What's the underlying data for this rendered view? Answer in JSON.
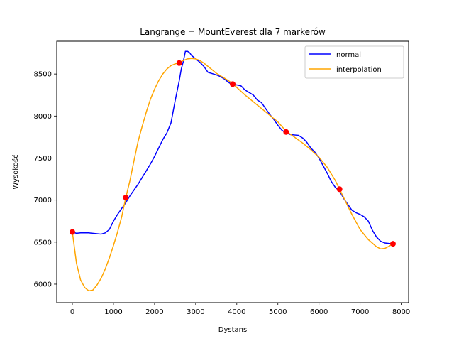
{
  "chart_data": {
    "type": "line",
    "title": "Langrange = MountEverest dla 7 markerów",
    "xlabel": "Dystans",
    "ylabel": "Wysokość",
    "xlim": [
      -380,
      8180
    ],
    "ylim": [
      5780,
      8890
    ],
    "xticks": [
      0,
      1000,
      2000,
      3000,
      4000,
      5000,
      6000,
      7000,
      8000
    ],
    "yticks": [
      6000,
      6500,
      7000,
      7500,
      8000,
      8500
    ],
    "grid": false,
    "legend_position": "upper right",
    "series": [
      {
        "name": "normal",
        "color": "#0000ff",
        "x": [
          0,
          100,
          200,
          400,
          600,
          700,
          800,
          900,
          1000,
          1100,
          1200,
          1300,
          1400,
          1500,
          1600,
          1700,
          1800,
          1900,
          2000,
          2100,
          2200,
          2300,
          2400,
          2500,
          2600,
          2650,
          2700,
          2750,
          2800,
          2850,
          2900,
          3000,
          3100,
          3200,
          3300,
          3400,
          3500,
          3600,
          3700,
          3800,
          3900,
          4000,
          4100,
          4200,
          4300,
          4400,
          4500,
          4600,
          4700,
          4800,
          4900,
          5000,
          5100,
          5200,
          5300,
          5400,
          5500,
          5600,
          5700,
          5800,
          5900,
          6000,
          6100,
          6200,
          6300,
          6400,
          6500,
          6600,
          6700,
          6800,
          6900,
          7000,
          7100,
          7200,
          7300,
          7400,
          7500,
          7600,
          7700,
          7800
        ],
        "y": [
          6620,
          6605,
          6610,
          6610,
          6600,
          6595,
          6610,
          6650,
          6750,
          6830,
          6900,
          6970,
          7050,
          7120,
          7190,
          7270,
          7350,
          7430,
          7520,
          7620,
          7720,
          7800,
          7920,
          8180,
          8420,
          8560,
          8650,
          8770,
          8770,
          8755,
          8720,
          8680,
          8640,
          8590,
          8520,
          8505,
          8490,
          8470,
          8440,
          8400,
          8370,
          8370,
          8360,
          8310,
          8280,
          8250,
          8190,
          8160,
          8090,
          8020,
          7960,
          7890,
          7830,
          7800,
          7780,
          7775,
          7770,
          7740,
          7690,
          7620,
          7570,
          7500,
          7410,
          7320,
          7220,
          7150,
          7110,
          7020,
          6950,
          6880,
          6850,
          6830,
          6800,
          6750,
          6640,
          6560,
          6510,
          6490,
          6485,
          6480
        ]
      },
      {
        "name": "interpolation",
        "color": "#ffa500",
        "x": [
          0,
          100,
          200,
          300,
          400,
          500,
          600,
          700,
          800,
          900,
          1000,
          1100,
          1200,
          1300,
          1400,
          1500,
          1600,
          1700,
          1800,
          1900,
          2000,
          2100,
          2200,
          2300,
          2400,
          2500,
          2600,
          2700,
          2800,
          2900,
          3000,
          3100,
          3200,
          3300,
          3400,
          3500,
          3600,
          3700,
          3800,
          3900,
          4000,
          4200,
          4400,
          4600,
          4800,
          5000,
          5200,
          5400,
          5600,
          5800,
          6000,
          6200,
          6400,
          6500,
          6600,
          6800,
          7000,
          7200,
          7400,
          7500,
          7600,
          7700,
          7800
        ],
        "y": [
          6620,
          6250,
          6050,
          5960,
          5920,
          5930,
          5990,
          6070,
          6180,
          6310,
          6460,
          6620,
          6800,
          7030,
          7230,
          7470,
          7700,
          7880,
          8050,
          8200,
          8320,
          8420,
          8500,
          8560,
          8600,
          8620,
          8635,
          8660,
          8680,
          8685,
          8680,
          8660,
          8630,
          8590,
          8550,
          8510,
          8480,
          8450,
          8420,
          8385,
          8340,
          8250,
          8170,
          8090,
          8010,
          7930,
          7820,
          7750,
          7680,
          7600,
          7510,
          7390,
          7230,
          7130,
          7030,
          6830,
          6650,
          6530,
          6445,
          6420,
          6425,
          6450,
          6480
        ]
      },
      {
        "name": "markers",
        "color": "#ff0000",
        "x": [
          0,
          1300,
          2600,
          3900,
          5200,
          6500,
          7800
        ],
        "y": [
          6620,
          7030,
          8630,
          8380,
          7810,
          7130,
          6480
        ]
      }
    ],
    "legend": [
      {
        "label": "normal",
        "color": "#0000ff"
      },
      {
        "label": "interpolation",
        "color": "#ffa500"
      }
    ]
  }
}
